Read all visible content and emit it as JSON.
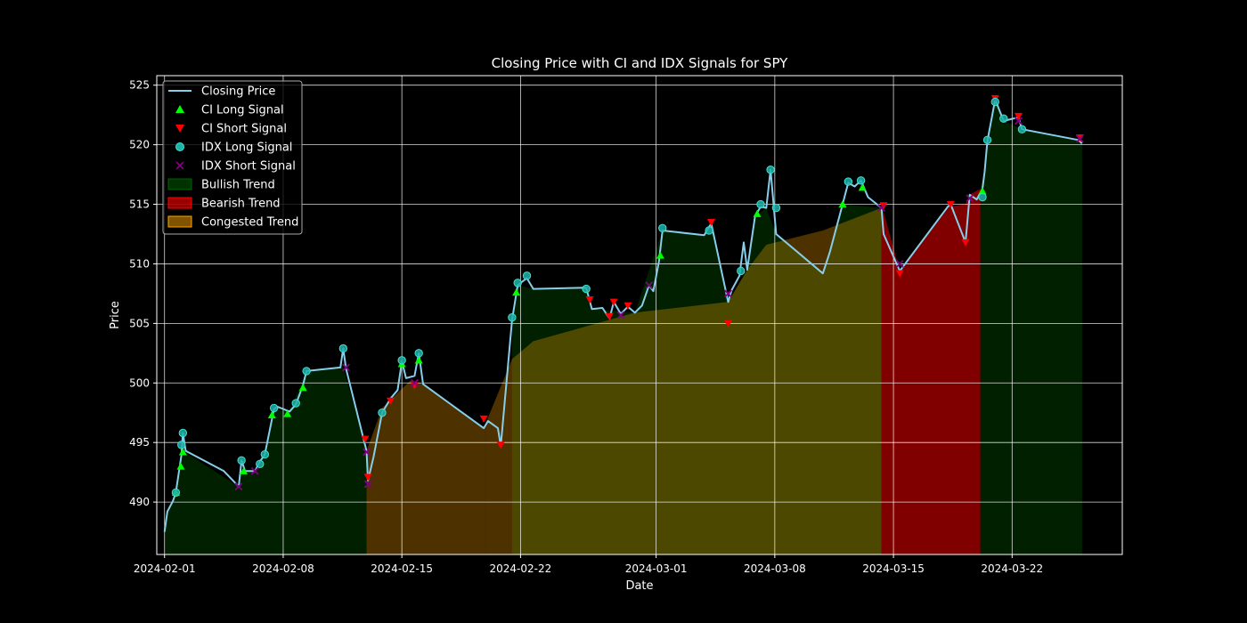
{
  "chart_data": {
    "type": "line",
    "title": "Closing Price with CI and IDX Signals for SPY",
    "xlabel": "Date",
    "ylabel": "Price",
    "x_range": [
      "2024-01-31T13:00",
      "2024-03-28T12:00"
    ],
    "ylim": [
      485.6,
      525.8
    ],
    "x_ticks": [
      "2024-02-01",
      "2024-02-08",
      "2024-02-15",
      "2024-02-22",
      "2024-03-01",
      "2024-03-08",
      "2024-03-15",
      "2024-03-22"
    ],
    "y_ticks": [
      490,
      495,
      500,
      505,
      510,
      515,
      520,
      525
    ],
    "grid": true,
    "legend_position": "upper-left",
    "colors": {
      "closing_price": "#87ceeb",
      "ci_long": "#00ff00",
      "ci_short": "#ff0000",
      "idx_long": "#20b2aa",
      "idx_short": "#800080",
      "bullish": "#006400",
      "bearish": "#ff0000",
      "congested": "#ffa500"
    },
    "legend": [
      {
        "key": "closing_price",
        "label": "Closing Price",
        "kind": "line"
      },
      {
        "key": "ci_long",
        "label": "CI Long Signal",
        "kind": "triangle-up"
      },
      {
        "key": "ci_short",
        "label": "CI Short Signal",
        "kind": "triangle-down"
      },
      {
        "key": "idx_long",
        "label": "IDX Long Signal",
        "kind": "circle"
      },
      {
        "key": "idx_short",
        "label": "IDX Short Signal",
        "kind": "x"
      },
      {
        "key": "bullish",
        "label": "Bullish Trend",
        "kind": "patch"
      },
      {
        "key": "bearish",
        "label": "Bearish Trend",
        "kind": "patch"
      },
      {
        "key": "congested",
        "label": "Congested Trend",
        "kind": "patch"
      }
    ],
    "series": [
      {
        "name": "Closing Price",
        "points": [
          [
            "2024-02-01T00:00",
            487.5
          ],
          [
            "2024-02-01T04:00",
            489.2
          ],
          [
            "2024-02-01T12:00",
            490.1
          ],
          [
            "2024-02-01T16:00",
            490.8
          ],
          [
            "2024-02-02T00:00",
            494.0
          ],
          [
            "2024-02-02T02:00",
            495.8
          ],
          [
            "2024-02-02T06:00",
            494.3
          ],
          [
            "2024-02-04T12:00",
            492.6
          ],
          [
            "2024-02-05T09:00",
            491.3
          ],
          [
            "2024-02-05T13:00",
            493.5
          ],
          [
            "2024-02-05T18:00",
            492.6
          ],
          [
            "2024-02-06T08:00",
            492.6
          ],
          [
            "2024-02-06T15:00",
            493.4
          ],
          [
            "2024-02-06T22:00",
            494.0
          ],
          [
            "2024-02-07T11:00",
            497.8
          ],
          [
            "2024-02-07T16:00",
            498.0
          ],
          [
            "2024-02-08T09:00",
            497.6
          ],
          [
            "2024-02-08T18:00",
            498.2
          ],
          [
            "2024-02-09T04:00",
            499.8
          ],
          [
            "2024-02-09T09:00",
            501.0
          ],
          [
            "2024-02-11T09:00",
            501.3
          ],
          [
            "2024-02-11T13:00",
            502.9
          ],
          [
            "2024-02-11T17:00",
            501.2
          ],
          [
            "2024-02-12T22:00",
            494.3
          ],
          [
            "2024-02-13T00:00",
            491.8
          ],
          [
            "2024-02-13T08:00",
            493.8
          ],
          [
            "2024-02-13T20:00",
            497.5
          ],
          [
            "2024-02-14T08:00",
            498.7
          ],
          [
            "2024-02-14T18:00",
            499.4
          ],
          [
            "2024-02-15T00:00",
            501.8
          ],
          [
            "2024-02-15T06:00",
            500.4
          ],
          [
            "2024-02-15T18:00",
            500.6
          ],
          [
            "2024-02-16T00:00",
            502.5
          ],
          [
            "2024-02-16T06:00",
            499.9
          ],
          [
            "2024-02-19T20:00",
            496.2
          ],
          [
            "2024-02-20T02:00",
            496.8
          ],
          [
            "2024-02-20T16:00",
            496.2
          ],
          [
            "2024-02-20T20:00",
            494.7
          ],
          [
            "2024-02-21T12:00",
            505.3
          ],
          [
            "2024-02-21T20:00",
            508.2
          ],
          [
            "2024-02-22T09:00",
            508.8
          ],
          [
            "2024-02-22T18:00",
            507.9
          ],
          [
            "2024-02-25T21:00",
            508.0
          ],
          [
            "2024-02-26T05:00",
            506.2
          ],
          [
            "2024-02-26T20:00",
            506.3
          ],
          [
            "2024-02-27T06:00",
            505.4
          ],
          [
            "2024-02-27T12:00",
            506.8
          ],
          [
            "2024-02-27T22:00",
            505.8
          ],
          [
            "2024-02-28T08:00",
            506.4
          ],
          [
            "2024-02-28T18:00",
            505.9
          ],
          [
            "2024-02-29T04:00",
            506.5
          ],
          [
            "2024-02-29T14:00",
            508.2
          ],
          [
            "2024-02-29T20:00",
            507.7
          ],
          [
            "2024-03-01T04:00",
            510.2
          ],
          [
            "2024-03-01T09:00",
            512.8
          ],
          [
            "2024-03-03T20:00",
            512.4
          ],
          [
            "2024-03-04T06:00",
            513.4
          ],
          [
            "2024-03-05T06:00",
            506.8
          ],
          [
            "2024-03-05T11:00",
            507.8
          ],
          [
            "2024-03-05T22:00",
            509.0
          ],
          [
            "2024-03-06T04:00",
            511.8
          ],
          [
            "2024-03-06T09:00",
            509.5
          ],
          [
            "2024-03-06T20:00",
            514.0
          ],
          [
            "2024-03-07T04:00",
            514.8
          ],
          [
            "2024-03-07T12:00",
            514.7
          ],
          [
            "2024-03-07T18:00",
            517.9
          ],
          [
            "2024-03-08T02:00",
            512.5
          ],
          [
            "2024-03-10T20:00",
            509.2
          ],
          [
            "2024-03-11T06:00",
            511.0
          ],
          [
            "2024-03-12T00:00",
            515.0
          ],
          [
            "2024-03-12T08:00",
            516.8
          ],
          [
            "2024-03-12T17:00",
            516.5
          ],
          [
            "2024-03-13T02:00",
            517.0
          ],
          [
            "2024-03-13T12:00",
            515.6
          ],
          [
            "2024-03-14T07:00",
            514.7
          ],
          [
            "2024-03-14T10:00",
            512.5
          ],
          [
            "2024-03-15T09:00",
            509.4
          ],
          [
            "2024-03-18T05:00",
            514.8
          ],
          [
            "2024-03-18T09:00",
            515.0
          ],
          [
            "2024-03-19T06:00",
            511.8
          ],
          [
            "2024-03-19T12:00",
            515.8
          ],
          [
            "2024-03-19T22:00",
            515.4
          ],
          [
            "2024-03-20T06:00",
            516.3
          ],
          [
            "2024-03-20T09:00",
            517.7
          ],
          [
            "2024-03-20T13:00",
            520.3
          ],
          [
            "2024-03-21T00:00",
            523.8
          ],
          [
            "2024-03-21T06:00",
            522.9
          ],
          [
            "2024-03-21T12:00",
            522.0
          ],
          [
            "2024-03-22T09:00",
            522.3
          ],
          [
            "2024-03-22T14:00",
            521.3
          ],
          [
            "2024-03-25T22:00",
            520.4
          ],
          [
            "2024-03-26T03:00",
            520.1
          ]
        ]
      },
      {
        "name": "CI Long Signal",
        "points": [
          [
            "2024-02-01T16:00",
            490.8
          ],
          [
            "2024-02-01T23:00",
            493.0
          ],
          [
            "2024-02-02T02:00",
            494.2
          ],
          [
            "2024-02-05T16:00",
            492.6
          ],
          [
            "2024-02-07T08:00",
            497.3
          ],
          [
            "2024-02-08T06:00",
            497.4
          ],
          [
            "2024-02-09T04:00",
            499.6
          ],
          [
            "2024-02-15T00:00",
            501.6
          ],
          [
            "2024-02-16T00:00",
            501.9
          ],
          [
            "2024-02-21T18:00",
            507.6
          ],
          [
            "2024-03-01T06:00",
            510.7
          ],
          [
            "2024-03-06T23:00",
            514.2
          ],
          [
            "2024-03-12T00:00",
            515.0
          ],
          [
            "2024-03-13T04:00",
            516.4
          ],
          [
            "2024-03-20T06:00",
            516.1
          ]
        ]
      },
      {
        "name": "CI Short Signal",
        "points": [
          [
            "2024-02-12T20:00",
            495.3
          ],
          [
            "2024-02-13T00:00",
            492.1
          ],
          [
            "2024-02-14T08:00",
            498.5
          ],
          [
            "2024-02-15T18:00",
            499.8
          ],
          [
            "2024-02-19T20:00",
            497.0
          ],
          [
            "2024-02-20T20:00",
            494.8
          ],
          [
            "2024-02-26T02:00",
            507.0
          ],
          [
            "2024-02-27T06:00",
            505.6
          ],
          [
            "2024-02-27T12:00",
            506.8
          ],
          [
            "2024-02-28T08:00",
            506.5
          ],
          [
            "2024-03-04T06:00",
            513.5
          ],
          [
            "2024-03-05T06:00",
            505.0
          ],
          [
            "2024-03-14T10:00",
            514.9
          ],
          [
            "2024-03-15T09:00",
            509.2
          ],
          [
            "2024-03-18T09:00",
            515.0
          ],
          [
            "2024-03-19T06:00",
            511.8
          ],
          [
            "2024-03-21T00:00",
            523.9
          ],
          [
            "2024-03-22T09:00",
            522.4
          ],
          [
            "2024-03-26T00:00",
            520.6
          ]
        ]
      },
      {
        "name": "IDX Long Signal",
        "points": [
          [
            "2024-02-01T16:00",
            490.8
          ],
          [
            "2024-02-02T00:00",
            494.8
          ],
          [
            "2024-02-02T02:00",
            495.8
          ],
          [
            "2024-02-05T13:00",
            493.5
          ],
          [
            "2024-02-06T15:00",
            493.2
          ],
          [
            "2024-02-06T22:00",
            494.0
          ],
          [
            "2024-02-07T11:00",
            497.9
          ],
          [
            "2024-02-08T18:00",
            498.3
          ],
          [
            "2024-02-09T09:00",
            501.0
          ],
          [
            "2024-02-11T13:00",
            502.9
          ],
          [
            "2024-02-13T20:00",
            497.5
          ],
          [
            "2024-02-15T00:00",
            501.9
          ],
          [
            "2024-02-16T00:00",
            502.5
          ],
          [
            "2024-02-21T12:00",
            505.5
          ],
          [
            "2024-02-21T20:00",
            508.4
          ],
          [
            "2024-02-22T09:00",
            509.0
          ],
          [
            "2024-02-25T21:00",
            507.9
          ],
          [
            "2024-03-01T09:00",
            513.0
          ],
          [
            "2024-03-04T03:00",
            512.8
          ],
          [
            "2024-03-06T00:00",
            509.4
          ],
          [
            "2024-03-07T04:00",
            515.0
          ],
          [
            "2024-03-07T18:00",
            517.9
          ],
          [
            "2024-03-08T02:00",
            514.7
          ],
          [
            "2024-03-12T08:00",
            516.9
          ],
          [
            "2024-03-13T02:00",
            517.0
          ],
          [
            "2024-03-20T06:00",
            515.6
          ],
          [
            "2024-03-20T13:00",
            520.4
          ],
          [
            "2024-03-21T00:00",
            523.6
          ],
          [
            "2024-03-21T12:00",
            522.2
          ],
          [
            "2024-03-22T14:00",
            521.3
          ]
        ]
      },
      {
        "name": "IDX Short Signal",
        "points": [
          [
            "2024-02-05T09:00",
            491.3
          ],
          [
            "2024-02-06T08:00",
            492.6
          ],
          [
            "2024-02-11T17:00",
            501.3
          ],
          [
            "2024-02-12T22:00",
            494.2
          ],
          [
            "2024-02-13T00:00",
            491.5
          ],
          [
            "2024-02-15T18:00",
            500.0
          ],
          [
            "2024-02-27T22:00",
            505.7
          ],
          [
            "2024-02-29T14:00",
            508.2
          ],
          [
            "2024-03-05T06:00",
            507.5
          ],
          [
            "2024-03-14T07:00",
            514.7
          ],
          [
            "2024-03-15T09:00",
            510.0
          ],
          [
            "2024-03-19T12:00",
            515.5
          ],
          [
            "2024-03-22T09:00",
            522.0
          ],
          [
            "2024-03-26T00:00",
            520.5
          ]
        ]
      }
    ],
    "trend_regions": [
      {
        "trend": "bullish",
        "points": [
          [
            "2024-02-01T00:00",
            487.5
          ],
          [
            "2024-02-01T04:00",
            489.2
          ],
          [
            "2024-02-01T16:00",
            490.8
          ],
          [
            "2024-02-02T02:00",
            494.3
          ],
          [
            "2024-02-05T09:00",
            491.3
          ],
          [
            "2024-02-05T13:00",
            492.6
          ],
          [
            "2024-02-06T08:00",
            492.6
          ],
          [
            "2024-02-06T22:00",
            494.0
          ],
          [
            "2024-02-07T11:00",
            497.8
          ],
          [
            "2024-02-08T09:00",
            497.6
          ],
          [
            "2024-02-09T09:00",
            501.0
          ],
          [
            "2024-02-11T13:00",
            501.3
          ],
          [
            "2024-02-12T22:00",
            494.3
          ]
        ]
      },
      {
        "trend": "congested",
        "points": [
          [
            "2024-02-12T22:00",
            494.3
          ],
          [
            "2024-02-13T20:00",
            497.9
          ],
          [
            "2024-02-15T12:00",
            500.2
          ],
          [
            "2024-02-16T06:00",
            499.9
          ],
          [
            "2024-02-19T20:00",
            496.2
          ],
          [
            "2024-02-19T22:00",
            496.5
          ]
        ]
      },
      {
        "trend": "bullish",
        "points": [
          [
            "2024-02-21T12:00",
            505.3
          ],
          [
            "2024-02-21T20:00",
            508.2
          ],
          [
            "2024-02-22T18:00",
            507.9
          ],
          [
            "2024-02-25T21:00",
            508.0
          ],
          [
            "2024-02-26T05:00",
            506.2
          ],
          [
            "2024-02-28T18:00",
            505.9
          ],
          [
            "2024-03-01T09:00",
            512.8
          ],
          [
            "2024-03-03T20:00",
            512.4
          ],
          [
            "2024-03-04T06:00",
            513.4
          ],
          [
            "2024-03-05T06:00",
            506.8
          ],
          [
            "2024-03-06T09:00",
            509.5
          ],
          [
            "2024-03-06T20:00",
            514.0
          ],
          [
            "2024-03-07T12:00",
            514.7
          ],
          [
            "2024-03-08T02:00",
            512.5
          ],
          [
            "2024-03-10T20:00",
            509.2
          ],
          [
            "2024-03-12T00:00",
            515.0
          ],
          [
            "2024-03-14T07:00",
            514.7
          ]
        ]
      },
      {
        "trend": "congested",
        "points": [
          [
            "2024-02-19T22:00",
            496.5
          ],
          [
            "2024-02-21T12:00",
            502.0
          ],
          [
            "2024-02-22T18:00",
            503.5
          ],
          [
            "2024-02-28T18:00",
            505.9
          ],
          [
            "2024-03-05T06:00",
            506.8
          ],
          [
            "2024-03-06T09:00",
            509.5
          ],
          [
            "2024-03-07T12:00",
            511.6
          ],
          [
            "2024-03-10T20:00",
            512.8
          ],
          [
            "2024-03-14T07:00",
            514.7
          ]
        ]
      },
      {
        "trend": "bearish",
        "points": [
          [
            "2024-03-14T07:00",
            515.0
          ],
          [
            "2024-03-15T09:00",
            509.4
          ],
          [
            "2024-03-18T05:00",
            514.8
          ],
          [
            "2024-03-19T06:00",
            515.0
          ],
          [
            "2024-03-19T12:00",
            515.8
          ],
          [
            "2024-03-20T03:00",
            516.3
          ]
        ]
      },
      {
        "trend": "bullish",
        "points": [
          [
            "2024-03-20T03:00",
            516.3
          ],
          [
            "2024-03-20T09:00",
            517.7
          ],
          [
            "2024-03-20T13:00",
            520.3
          ],
          [
            "2024-03-21T00:00",
            523.8
          ],
          [
            "2024-03-21T12:00",
            522.0
          ],
          [
            "2024-03-22T14:00",
            521.3
          ],
          [
            "2024-03-25T22:00",
            520.4
          ],
          [
            "2024-03-26T03:00",
            520.1
          ]
        ]
      }
    ]
  }
}
